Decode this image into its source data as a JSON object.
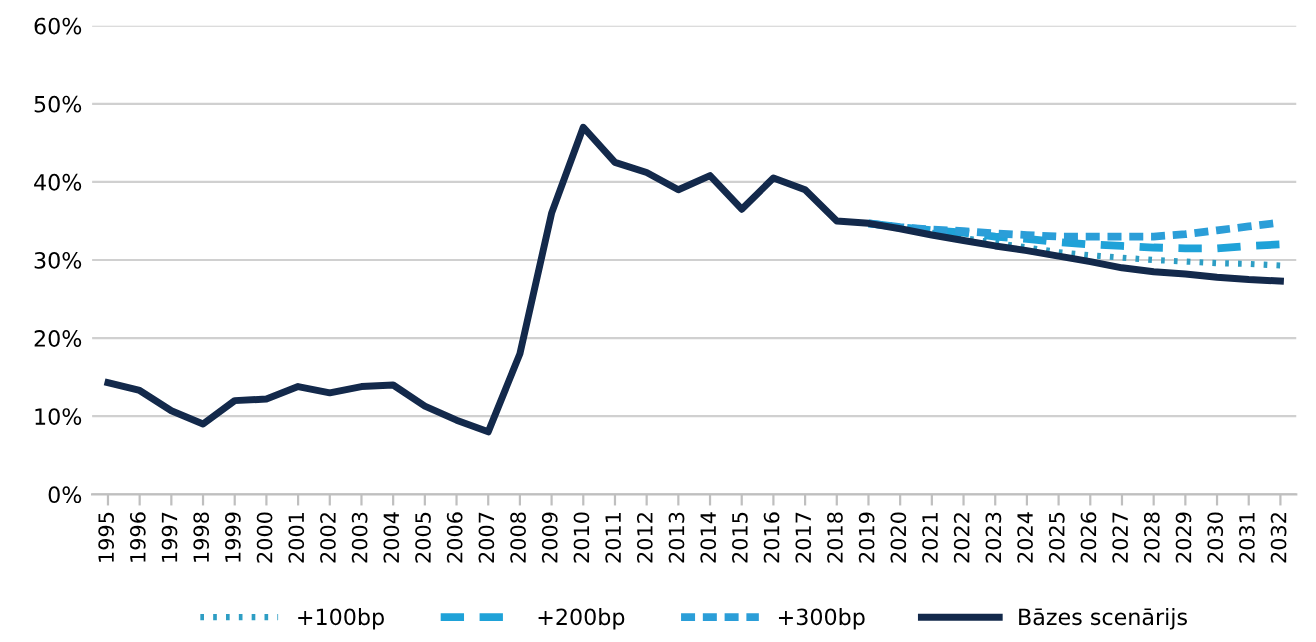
{
  "chart_data": {
    "type": "line",
    "categories": [
      "1995",
      "1996",
      "1997",
      "1998",
      "1999",
      "2000",
      "2001",
      "2002",
      "2003",
      "2004",
      "2005",
      "2006",
      "2007",
      "2008",
      "2009",
      "2010",
      "2011",
      "2012",
      "2013",
      "2014",
      "2015",
      "2016",
      "2017",
      "2018",
      "2019",
      "2020",
      "2021",
      "2022",
      "2023",
      "2024",
      "2025",
      "2026",
      "2027",
      "2028",
      "2029",
      "2030",
      "2031",
      "2032"
    ],
    "series": [
      {
        "name": "+100bp",
        "color": "#2e9ec4",
        "line_style": "dotted",
        "values": [
          null,
          null,
          null,
          null,
          null,
          null,
          null,
          null,
          null,
          null,
          null,
          null,
          null,
          null,
          null,
          null,
          null,
          null,
          null,
          null,
          null,
          null,
          null,
          null,
          34.7,
          34,
          33.5,
          32.8,
          32.2,
          31.6,
          31,
          30.6,
          30.3,
          30,
          29.8,
          29.6,
          29.5,
          29.3
        ]
      },
      {
        "name": "+200bp",
        "color": "#1fa2d8",
        "line_style": "dashed",
        "values": [
          null,
          null,
          null,
          null,
          null,
          null,
          null,
          null,
          null,
          null,
          null,
          null,
          null,
          null,
          null,
          null,
          null,
          null,
          null,
          null,
          null,
          null,
          null,
          null,
          34.7,
          34.2,
          33.8,
          33.5,
          33,
          32.7,
          32.3,
          32,
          31.8,
          31.6,
          31.5,
          31.5,
          31.8,
          32
        ]
      },
      {
        "name": "+300bp",
        "color": "#2b9ed8",
        "line_style": "dashed_short",
        "values": [
          null,
          null,
          null,
          null,
          null,
          null,
          null,
          null,
          null,
          null,
          null,
          null,
          null,
          null,
          null,
          null,
          null,
          null,
          null,
          null,
          null,
          null,
          null,
          null,
          34.7,
          34.2,
          33.9,
          33.7,
          33.4,
          33.2,
          33,
          33,
          33,
          33,
          33.3,
          33.8,
          34.3,
          34.8
        ]
      },
      {
        "name": "Bāzes scenārijs",
        "color": "#13294b",
        "line_style": "solid",
        "values": [
          14.3,
          13.3,
          10.7,
          9,
          12,
          12.2,
          13.8,
          13,
          13.8,
          14,
          11.3,
          9.5,
          8,
          18,
          36,
          47,
          42.5,
          41.2,
          39,
          40.8,
          36.5,
          40.5,
          39,
          35,
          34.7,
          34,
          33.2,
          32.5,
          31.8,
          31.2,
          30.5,
          29.8,
          29,
          28.5,
          28.2,
          27.8,
          27.5,
          27.3
        ]
      }
    ],
    "ylim": [
      0,
      60
    ],
    "yticks": [
      {
        "value": 0,
        "label": "0%"
      },
      {
        "value": 10,
        "label": "10%"
      },
      {
        "value": 20,
        "label": "20%"
      },
      {
        "value": 30,
        "label": "30%"
      },
      {
        "value": 40,
        "label": "40%"
      },
      {
        "value": 50,
        "label": "50%"
      },
      {
        "value": 60,
        "label": "60%"
      }
    ],
    "grid": "y",
    "legend": "bottom",
    "marker": "none"
  }
}
